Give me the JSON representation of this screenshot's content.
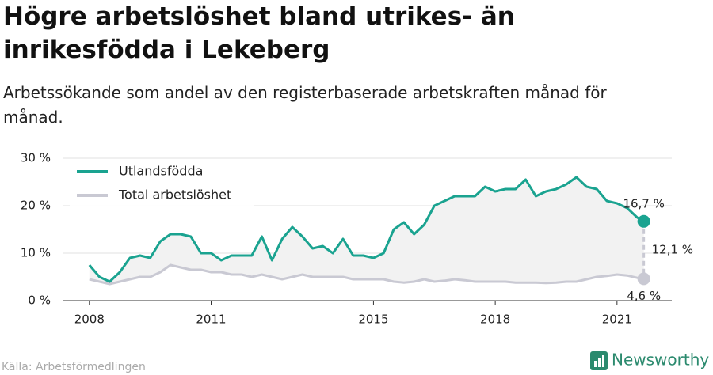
{
  "chart_data": {
    "type": "line",
    "title": "Högre arbetslöshet bland utrikes- än inrikesfödda i Lekeberg",
    "subtitle": "Arbetssökande som andel av den registerbaserade arbetskraften månad för månad.",
    "x": [
      2008,
      2008.25,
      2008.5,
      2008.75,
      2009,
      2009.25,
      2009.5,
      2009.75,
      2010,
      2010.25,
      2010.5,
      2010.75,
      2011,
      2011.25,
      2011.5,
      2011.75,
      2012,
      2012.25,
      2012.5,
      2012.75,
      2013,
      2013.25,
      2013.5,
      2013.75,
      2014,
      2014.25,
      2014.5,
      2014.75,
      2015,
      2015.25,
      2015.5,
      2015.75,
      2016,
      2016.25,
      2016.5,
      2016.75,
      2017,
      2017.25,
      2017.5,
      2017.75,
      2018,
      2018.25,
      2018.5,
      2018.75,
      2019,
      2019.25,
      2019.5,
      2019.75,
      2020,
      2020.25,
      2020.5,
      2020.75,
      2021,
      2021.25,
      2021.5,
      2021.66
    ],
    "series": [
      {
        "name": "Utlandsfödda",
        "color": "#1aa390",
        "values": [
          7.5,
          5,
          4,
          6,
          9,
          9.5,
          9,
          12.5,
          14,
          14,
          13.5,
          10,
          10,
          8.5,
          9.5,
          9.5,
          9.5,
          13.5,
          8.5,
          13,
          15.5,
          13.5,
          11,
          11.5,
          10,
          13,
          9.5,
          9.5,
          9,
          10,
          15,
          16.5,
          14,
          16,
          20,
          21,
          22,
          22,
          22,
          24,
          23,
          23.5,
          23.5,
          25.5,
          22,
          23,
          23.5,
          24.5,
          26,
          24,
          23.5,
          21,
          20.5,
          19.5,
          17.5,
          16.7
        ],
        "value_labels": [
          null,
          null,
          null,
          null,
          null,
          null,
          null,
          null,
          null,
          null,
          null,
          null,
          null,
          null,
          null,
          null,
          null,
          null,
          null,
          null,
          null,
          null,
          null,
          null,
          null,
          null,
          null,
          null,
          null,
          null,
          null,
          null,
          null,
          null,
          null,
          null,
          null,
          null,
          null,
          null,
          null,
          null,
          null,
          null,
          null,
          null,
          null,
          null,
          null,
          null,
          null,
          null,
          null,
          null,
          null,
          "16,7 %"
        ]
      },
      {
        "name": "Total arbetslöshet",
        "color": "#c9c9d3",
        "values": [
          4.5,
          4,
          3.5,
          4,
          4.5,
          5,
          5,
          6,
          7.5,
          7,
          6.5,
          6.5,
          6,
          6,
          5.5,
          5.5,
          5,
          5.5,
          5,
          4.5,
          5,
          5.5,
          5,
          5,
          5,
          5,
          4.5,
          4.5,
          4.5,
          4.5,
          4,
          3.8,
          4,
          4.5,
          4,
          4.2,
          4.5,
          4.3,
          4,
          4,
          4,
          4,
          3.8,
          3.8,
          3.8,
          3.7,
          3.8,
          4,
          4,
          4.5,
          5,
          5.2,
          5.5,
          5.3,
          4.8,
          4.6
        ],
        "value_labels": [
          null,
          null,
          null,
          null,
          null,
          null,
          null,
          null,
          null,
          null,
          null,
          null,
          null,
          null,
          null,
          null,
          null,
          null,
          null,
          null,
          null,
          null,
          null,
          null,
          null,
          null,
          null,
          null,
          null,
          null,
          null,
          null,
          null,
          null,
          null,
          null,
          null,
          null,
          null,
          null,
          null,
          null,
          null,
          null,
          null,
          null,
          null,
          null,
          null,
          null,
          null,
          null,
          null,
          null,
          null,
          "4,6 %"
        ]
      }
    ],
    "difference": {
      "value": 12.1,
      "label": "12,1 %"
    },
    "xlim": [
      2007.36,
      2022.35
    ],
    "xticks": [
      2008,
      2011,
      2015,
      2018,
      2021
    ],
    "ylim": [
      0,
      30
    ],
    "yticks": [
      {
        "value": 0,
        "label": "0 %"
      },
      {
        "value": 10,
        "label": "10 %"
      },
      {
        "value": 20,
        "label": "20 %"
      },
      {
        "value": 30,
        "label": "30 %"
      }
    ],
    "grid": true,
    "legend": "top-left",
    "source": "Källa: Arbetsförmedlingen",
    "brand": "Newsworthy"
  }
}
